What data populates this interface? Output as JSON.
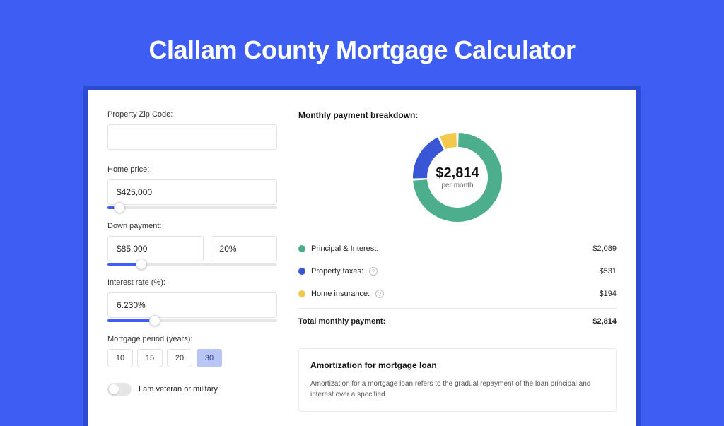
{
  "page": {
    "title": "Clallam County Mortgage Calculator",
    "background_color": "#3e5df3",
    "card_bg": "#ffffff",
    "card_wrapper_bg": "#2d4bd1"
  },
  "form": {
    "zip": {
      "label": "Property Zip Code:",
      "value": ""
    },
    "home_price": {
      "label": "Home price:",
      "value": "$425,000",
      "slider_pct": 7
    },
    "down_payment": {
      "label": "Down payment:",
      "amount": "$85,000",
      "percent": "20%",
      "slider_pct": 20
    },
    "interest": {
      "label": "Interest rate (%):",
      "value": "6.230%",
      "slider_pct": 28
    },
    "period": {
      "label": "Mortgage period (years):",
      "options": [
        "10",
        "15",
        "20",
        "30"
      ],
      "active": "30"
    },
    "veteran": {
      "label": "I am veteran or military",
      "checked": false
    }
  },
  "breakdown": {
    "title": "Monthly payment breakdown:",
    "donut": {
      "center_amount": "$2,814",
      "center_sub": "per month",
      "size": 126,
      "thickness": 20,
      "segments": [
        {
          "label": "Principal & Interest",
          "value": 2089,
          "color": "#4cae8c",
          "pct": 74.2
        },
        {
          "label": "Property taxes",
          "value": 531,
          "color": "#3856d6",
          "pct": 18.9
        },
        {
          "label": "Home insurance",
          "value": 194,
          "color": "#f2c94c",
          "pct": 6.9
        }
      ]
    },
    "rows": [
      {
        "dot_color": "#4cae8c",
        "label": "Principal & Interest:",
        "amount": "$2,089",
        "info": false
      },
      {
        "dot_color": "#3856d6",
        "label": "Property taxes:",
        "amount": "$531",
        "info": true
      },
      {
        "dot_color": "#f2c94c",
        "label": "Home insurance:",
        "amount": "$194",
        "info": true
      }
    ],
    "total": {
      "label": "Total monthly payment:",
      "amount": "$2,814"
    }
  },
  "amortization": {
    "title": "Amortization for mortgage loan",
    "text": "Amortization for a mortgage loan refers to the gradual repayment of the loan principal and interest over a specified"
  }
}
